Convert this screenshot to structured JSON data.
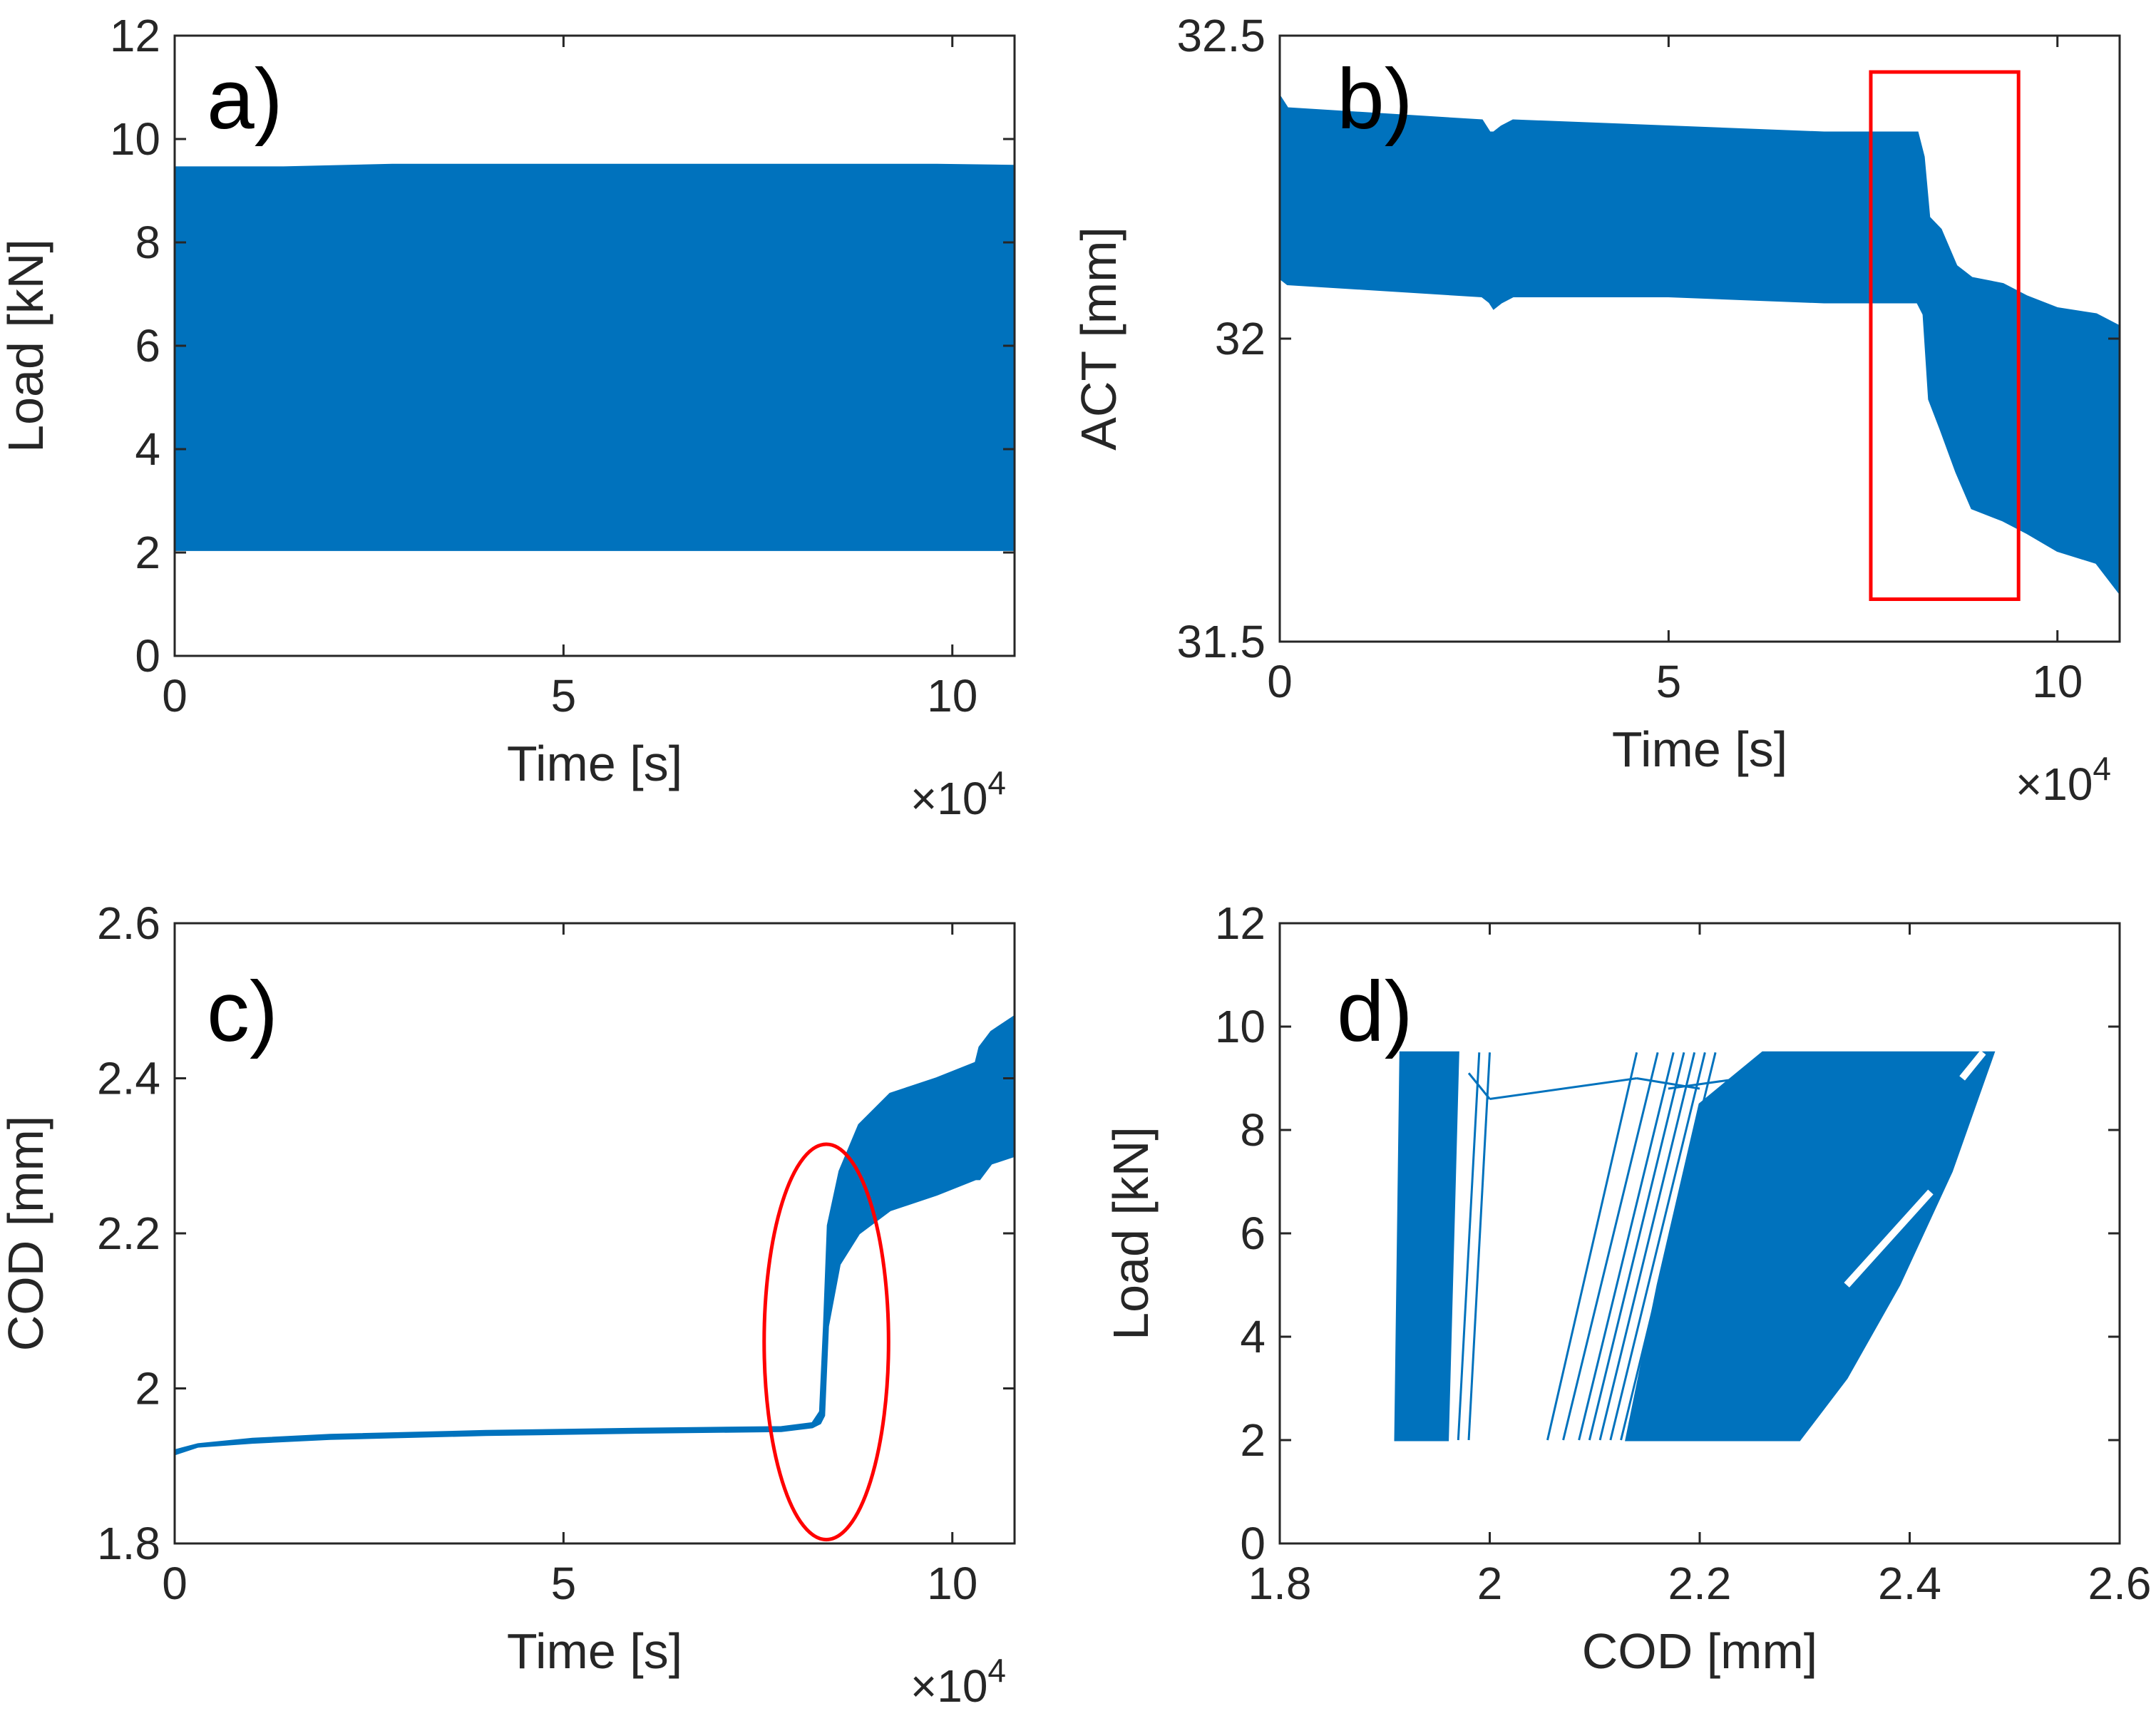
{
  "colors": {
    "data": "#0072BD",
    "annotation": "#ff0000",
    "axis": "#262626",
    "background": "#ffffff"
  },
  "chart_data": [
    {
      "id": "a",
      "type": "line",
      "panel_label": "a)",
      "xlabel": "Time [s]",
      "ylabel": "Load [kN]",
      "x_multiplier_label": "×10",
      "x_multiplier_exponent": "4",
      "xlim": [
        0,
        10.8
      ],
      "ylim": [
        0,
        12
      ],
      "xticks": [
        0,
        5,
        10
      ],
      "xtick_labels": [
        "0",
        "5",
        "10"
      ],
      "yticks": [
        0,
        2,
        4,
        6,
        8,
        10,
        12
      ],
      "ytick_labels": [
        "0",
        "2",
        "4",
        "6",
        "8",
        "10",
        "12"
      ],
      "series": [
        {
          "style": "band",
          "x": [
            0,
            1.4,
            2.8,
            4.2,
            5.6,
            7.0,
            8.4,
            9.8,
            10.8
          ],
          "lower": [
            2.05,
            2.05,
            2.05,
            2.05,
            2.05,
            2.05,
            2.05,
            2.05,
            2.05
          ],
          "upper": [
            9.45,
            9.45,
            9.5,
            9.5,
            9.5,
            9.5,
            9.5,
            9.5,
            9.48
          ]
        }
      ]
    },
    {
      "id": "b",
      "type": "line",
      "panel_label": "b)",
      "xlabel": "Time [s]",
      "ylabel": "ACT [mm]",
      "x_multiplier_label": "×10",
      "x_multiplier_exponent": "4",
      "xlim": [
        0,
        10.8
      ],
      "ylim": [
        31.5,
        32.5
      ],
      "xticks": [
        0,
        5,
        10
      ],
      "xtick_labels": [
        "0",
        "5",
        "10"
      ],
      "yticks": [
        31.5,
        32,
        32.5
      ],
      "ytick_labels": [
        "31.5",
        "32",
        "32.5"
      ],
      "series": [
        {
          "style": "band",
          "x": [
            0,
            0.1,
            2.6,
            2.7,
            2.75,
            2.85,
            3.0,
            5.0,
            7.0,
            8.2,
            8.28,
            8.35,
            8.5,
            8.7,
            8.9,
            9.3,
            9.6,
            10.0,
            10.5,
            10.8
          ],
          "upper": [
            32.4,
            32.38,
            32.36,
            32.34,
            32.34,
            32.35,
            32.36,
            32.35,
            32.34,
            32.34,
            32.3,
            32.2,
            32.18,
            32.12,
            32.1,
            32.09,
            32.07,
            32.05,
            32.04,
            32.02
          ],
          "lower": [
            32.1,
            32.09,
            32.07,
            32.06,
            32.05,
            32.06,
            32.07,
            32.07,
            32.06,
            32.06,
            32.04,
            31.9,
            31.85,
            31.78,
            31.72,
            31.7,
            31.68,
            31.65,
            31.63,
            31.58
          ]
        }
      ],
      "annotations": [
        {
          "shape": "rectangle",
          "x": [
            7.6,
            9.5
          ],
          "y": [
            31.57,
            32.44
          ],
          "color": "#ff0000"
        }
      ]
    },
    {
      "id": "c",
      "type": "line",
      "panel_label": "c)",
      "xlabel": "Time [s]",
      "ylabel": "COD [mm]",
      "x_multiplier_label": "×10",
      "x_multiplier_exponent": "4",
      "xlim": [
        0,
        10.8
      ],
      "ylim": [
        1.8,
        2.6
      ],
      "xticks": [
        0,
        5,
        10
      ],
      "xtick_labels": [
        "0",
        "5",
        "10"
      ],
      "yticks": [
        1.8,
        2,
        2.2,
        2.4,
        2.6
      ],
      "ytick_labels": [
        "1.8",
        "2",
        "2.2",
        "2.4",
        "2.6"
      ],
      "series": [
        {
          "style": "band",
          "x": [
            0,
            0.3,
            1.0,
            2.0,
            4.0,
            6.0,
            7.8,
            8.2,
            8.3,
            8.35,
            8.4,
            8.55,
            8.8,
            9.2,
            9.8,
            10.3,
            10.35,
            10.5,
            10.8
          ],
          "upper": [
            1.92,
            1.928,
            1.935,
            1.94,
            1.945,
            1.948,
            1.95,
            1.955,
            1.97,
            2.08,
            2.21,
            2.28,
            2.34,
            2.38,
            2.4,
            2.42,
            2.44,
            2.46,
            2.48
          ],
          "lower": [
            1.915,
            1.925,
            1.93,
            1.935,
            1.94,
            1.943,
            1.945,
            1.95,
            1.955,
            1.965,
            2.08,
            2.16,
            2.2,
            2.23,
            2.25,
            2.27,
            2.27,
            2.29,
            2.3
          ]
        }
      ],
      "annotations": [
        {
          "shape": "ellipse",
          "cx": 8.38,
          "cy": 2.06,
          "rx": 0.8,
          "ry": 0.255,
          "color": "#ff0000"
        }
      ]
    },
    {
      "id": "d",
      "type": "line",
      "panel_label": "d)",
      "xlabel": "COD [mm]",
      "ylabel": "Load [kN]",
      "xlim": [
        1.8,
        2.6
      ],
      "ylim": [
        0,
        12
      ],
      "xticks": [
        1.8,
        2,
        2.2,
        2.4,
        2.6
      ],
      "xtick_labels": [
        "1.8",
        "2",
        "2.2",
        "2.4",
        "2.6"
      ],
      "yticks": [
        0,
        2,
        4,
        6,
        8,
        10,
        12
      ],
      "ytick_labels": [
        "0",
        "2",
        "4",
        "6",
        "8",
        "10",
        "12"
      ],
      "series": [
        {
          "style": "filled-region",
          "name_hint": "initial cycles",
          "points": [
            [
              1.91,
              2.0
            ],
            [
              1.915,
              9.5
            ],
            [
              1.97,
              9.5
            ],
            [
              1.96,
              2.0
            ]
          ]
        },
        {
          "style": "filled-region",
          "name_hint": "later cycles",
          "points": [
            [
              2.13,
              2.0
            ],
            [
              2.295,
              2.0
            ],
            [
              2.34,
              3.2
            ],
            [
              2.39,
              5.0
            ],
            [
              2.44,
              7.2
            ],
            [
              2.48,
              9.5
            ],
            [
              2.26,
              9.5
            ],
            [
              2.2,
              8.5
            ],
            [
              2.16,
              5.0
            ]
          ]
        },
        {
          "style": "lines",
          "name_hint": "transition loops",
          "lines": [
            [
              [
                1.98,
                2.0
              ],
              [
                2.0,
                9.5
              ]
            ],
            [
              [
                1.97,
                2.0
              ],
              [
                1.99,
                9.5
              ]
            ],
            [
              [
                2.0,
                8.6
              ],
              [
                2.14,
                9.0
              ]
            ],
            [
              [
                1.98,
                9.1
              ],
              [
                2.0,
                8.6
              ]
            ],
            [
              [
                2.055,
                2.0
              ],
              [
                2.14,
                9.5
              ]
            ],
            [
              [
                2.07,
                2.0
              ],
              [
                2.16,
                9.5
              ]
            ],
            [
              [
                2.085,
                2.0
              ],
              [
                2.175,
                9.5
              ]
            ],
            [
              [
                2.095,
                2.0
              ],
              [
                2.185,
                9.5
              ]
            ],
            [
              [
                2.105,
                2.0
              ],
              [
                2.195,
                9.5
              ]
            ],
            [
              [
                2.115,
                2.0
              ],
              [
                2.205,
                9.5
              ]
            ],
            [
              [
                2.125,
                2.0
              ],
              [
                2.215,
                9.5
              ]
            ],
            [
              [
                2.14,
                9.0
              ],
              [
                2.2,
                8.8
              ]
            ],
            [
              [
                2.17,
                8.8
              ],
              [
                2.24,
                9.0
              ]
            ]
          ]
        },
        {
          "style": "white-gap",
          "name_hint": "gap streak",
          "lines": [
            [
              [
                2.34,
                5.0
              ],
              [
                2.42,
                6.8
              ]
            ],
            [
              [
                2.45,
                9.0
              ],
              [
                2.47,
                9.5
              ]
            ]
          ]
        }
      ]
    }
  ]
}
